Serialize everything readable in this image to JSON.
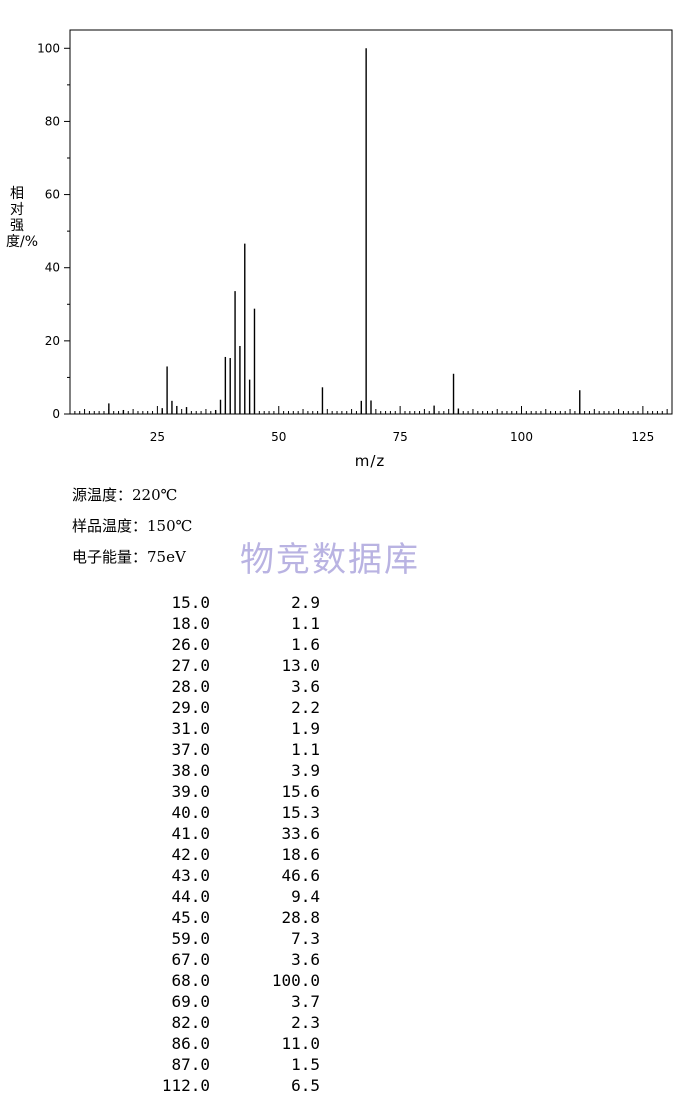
{
  "chart_data": {
    "type": "bar",
    "xlabel": "m/z",
    "ylabel": "相对强度/%",
    "xlim": [
      7,
      131
    ],
    "ylim": [
      0,
      105
    ],
    "x_ticks": [
      "25",
      "50",
      "75",
      "100",
      "125"
    ],
    "y_ticks": [
      "0",
      "20",
      "40",
      "60",
      "80",
      "100"
    ],
    "grid": false,
    "peaks": [
      {
        "x": 15.0,
        "y": 2.9
      },
      {
        "x": 18.0,
        "y": 1.1
      },
      {
        "x": 26.0,
        "y": 1.6
      },
      {
        "x": 27.0,
        "y": 13.0
      },
      {
        "x": 28.0,
        "y": 3.6
      },
      {
        "x": 29.0,
        "y": 2.2
      },
      {
        "x": 31.0,
        "y": 1.9
      },
      {
        "x": 37.0,
        "y": 1.1
      },
      {
        "x": 38.0,
        "y": 3.9
      },
      {
        "x": 39.0,
        "y": 15.6
      },
      {
        "x": 40.0,
        "y": 15.3
      },
      {
        "x": 41.0,
        "y": 33.6
      },
      {
        "x": 42.0,
        "y": 18.6
      },
      {
        "x": 43.0,
        "y": 46.6
      },
      {
        "x": 44.0,
        "y": 9.4
      },
      {
        "x": 45.0,
        "y": 28.8
      },
      {
        "x": 59.0,
        "y": 7.3
      },
      {
        "x": 67.0,
        "y": 3.6
      },
      {
        "x": 68.0,
        "y": 100.0
      },
      {
        "x": 69.0,
        "y": 3.7
      },
      {
        "x": 82.0,
        "y": 2.3
      },
      {
        "x": 86.0,
        "y": 11.0
      },
      {
        "x": 87.0,
        "y": 1.5
      },
      {
        "x": 112.0,
        "y": 6.5
      }
    ]
  },
  "conditions": {
    "source_temp": "源温度：220℃",
    "sample_temp": "样品温度：150℃",
    "electron_energy": "电子能量：75eV"
  },
  "watermark": "物竞数据库",
  "peak_table": [
    {
      "mz": "15.0",
      "intensity": "2.9"
    },
    {
      "mz": "18.0",
      "intensity": "1.1"
    },
    {
      "mz": "26.0",
      "intensity": "1.6"
    },
    {
      "mz": "27.0",
      "intensity": "13.0"
    },
    {
      "mz": "28.0",
      "intensity": "3.6"
    },
    {
      "mz": "29.0",
      "intensity": "2.2"
    },
    {
      "mz": "31.0",
      "intensity": "1.9"
    },
    {
      "mz": "37.0",
      "intensity": "1.1"
    },
    {
      "mz": "38.0",
      "intensity": "3.9"
    },
    {
      "mz": "39.0",
      "intensity": "15.6"
    },
    {
      "mz": "40.0",
      "intensity": "15.3"
    },
    {
      "mz": "41.0",
      "intensity": "33.6"
    },
    {
      "mz": "42.0",
      "intensity": "18.6"
    },
    {
      "mz": "43.0",
      "intensity": "46.6"
    },
    {
      "mz": "44.0",
      "intensity": "9.4"
    },
    {
      "mz": "45.0",
      "intensity": "28.8"
    },
    {
      "mz": "59.0",
      "intensity": "7.3"
    },
    {
      "mz": "67.0",
      "intensity": "3.6"
    },
    {
      "mz": "68.0",
      "intensity": "100.0"
    },
    {
      "mz": "69.0",
      "intensity": "3.7"
    },
    {
      "mz": "82.0",
      "intensity": "2.3"
    },
    {
      "mz": "86.0",
      "intensity": "11.0"
    },
    {
      "mz": "87.0",
      "intensity": "1.5"
    },
    {
      "mz": "112.0",
      "intensity": "6.5"
    }
  ]
}
